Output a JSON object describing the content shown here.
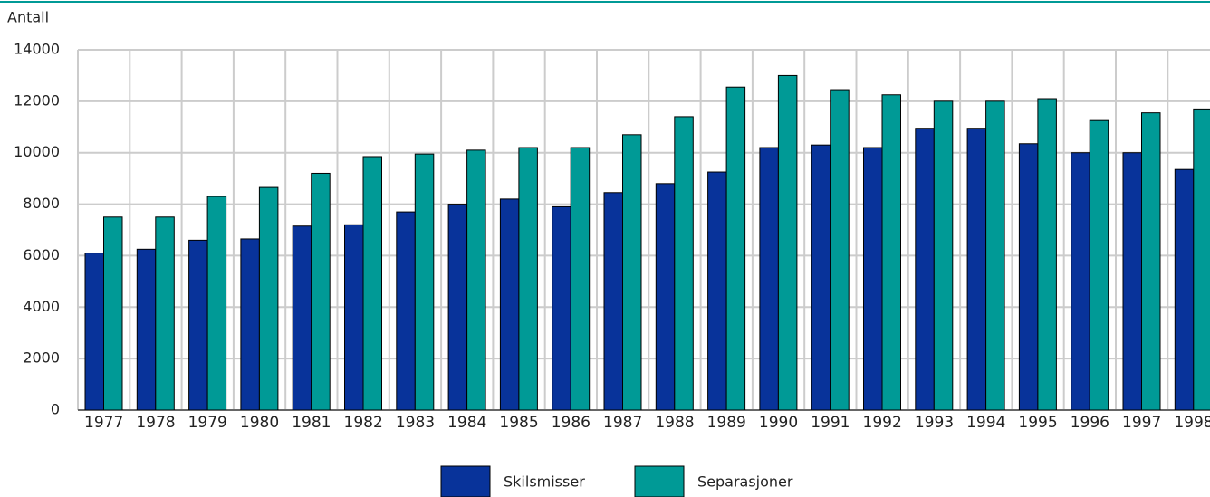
{
  "chart_data": {
    "type": "bar",
    "y_label": "Antall",
    "categories": [
      "1977",
      "1978",
      "1979",
      "1980",
      "1981",
      "1982",
      "1983",
      "1984",
      "1985",
      "1986",
      "1987",
      "1988",
      "1989",
      "1990",
      "1991",
      "1992",
      "1993",
      "1994",
      "1995",
      "1996",
      "1997",
      "1998"
    ],
    "series": [
      {
        "name": "Skilsmisser",
        "color": "#08339a",
        "values": [
          6100,
          6250,
          6600,
          6650,
          7150,
          7200,
          7700,
          8000,
          8200,
          7900,
          8450,
          8800,
          9250,
          10200,
          10300,
          10200,
          10950,
          10950,
          10350,
          10000,
          10000,
          9350
        ]
      },
      {
        "name": "Separasjoner",
        "color": "#009a96",
        "values": [
          7500,
          7500,
          8300,
          8650,
          9200,
          9850,
          9950,
          10100,
          10200,
          10200,
          10700,
          11400,
          12550,
          13000,
          12450,
          12250,
          12000,
          12000,
          12100,
          11250,
          11550,
          11700
        ]
      }
    ],
    "ylim": [
      0,
      14000
    ],
    "yticks": [
      0,
      2000,
      4000,
      6000,
      8000,
      10000,
      12000,
      14000
    ],
    "grid": true
  }
}
